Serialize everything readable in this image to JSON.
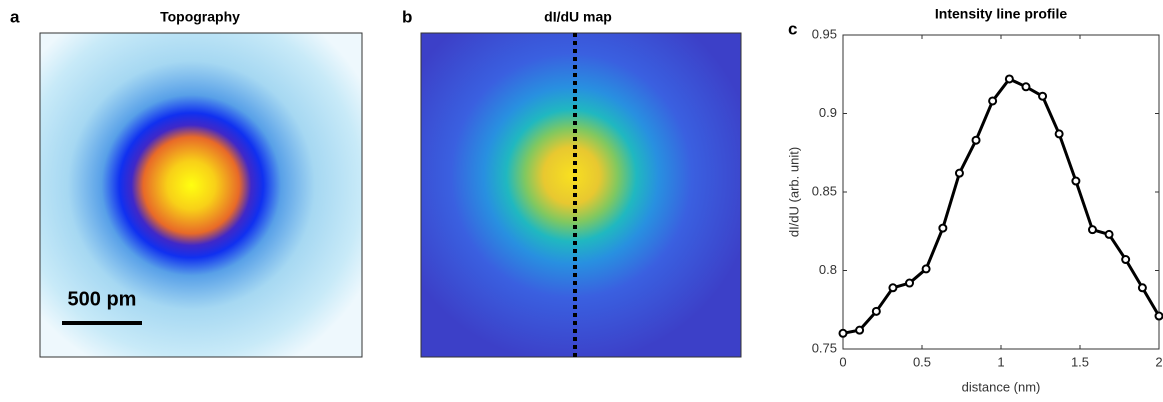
{
  "panels": [
    {
      "label": "a",
      "title": "Topography",
      "scale_bar": "500 pm"
    },
    {
      "label": "b",
      "title": "dI/dU map"
    }
  ],
  "chart_data": {
    "type": "line",
    "label": "c",
    "title": "Intensity line profile",
    "x_label": "distance (nm)",
    "y_label": "dI/dU (arb. unit)",
    "x": [
      0,
      0.105,
      0.211,
      0.316,
      0.421,
      0.526,
      0.632,
      0.737,
      0.842,
      0.947,
      1.053,
      1.158,
      1.263,
      1.368,
      1.474,
      1.579,
      1.684,
      1.789,
      1.895,
      2.0
    ],
    "series": [
      {
        "color": "#000000",
        "values": [
          0.76,
          0.762,
          0.774,
          0.789,
          0.792,
          0.801,
          0.827,
          0.862,
          0.883,
          0.908,
          0.922,
          0.917,
          0.911,
          0.887,
          0.857,
          0.826,
          0.823,
          0.807,
          0.789,
          0.771
        ]
      }
    ],
    "xlim": [
      0,
      2
    ],
    "xticks": [
      0,
      0.5,
      1,
      1.5,
      2
    ],
    "ylim": [
      0.75,
      0.95
    ],
    "yticks": [
      0.75,
      0.8,
      0.85,
      0.9,
      0.95
    ]
  }
}
